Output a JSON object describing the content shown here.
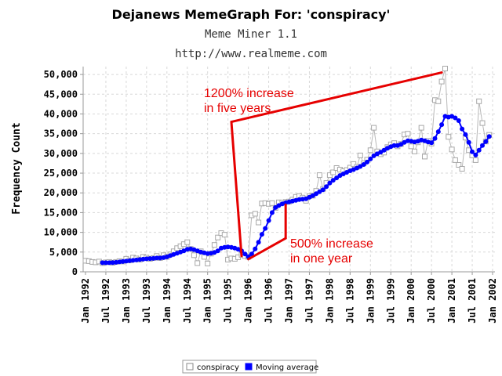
{
  "chart_data": {
    "type": "line",
    "title": "Dejanews MemeGraph For: 'conspiracy'",
    "subtitle": "Meme Miner 1.1",
    "source_line": "http://www.realmeme.com",
    "ylabel": "Frequency Count",
    "xlabel": "",
    "ylim": [
      0,
      52000
    ],
    "x_range": [
      "1992-01",
      "2002-01"
    ],
    "y_ticks": [
      {
        "value": 0,
        "label": "0"
      },
      {
        "value": 5000,
        "label": "5,000"
      },
      {
        "value": 10000,
        "label": "10,000"
      },
      {
        "value": 15000,
        "label": "15,000"
      },
      {
        "value": 20000,
        "label": "20,000"
      },
      {
        "value": 25000,
        "label": "25,000"
      },
      {
        "value": 30000,
        "label": "30,000"
      },
      {
        "value": 35000,
        "label": "35,000"
      },
      {
        "value": 40000,
        "label": "40,000"
      },
      {
        "value": 45000,
        "label": "45,000"
      },
      {
        "value": 50000,
        "label": "50,000"
      }
    ],
    "x_ticks": [
      {
        "x": "1992-01",
        "label": "Jan 1992"
      },
      {
        "x": "1992-07",
        "label": "Jul 1992"
      },
      {
        "x": "1993-01",
        "label": "Jan 1993"
      },
      {
        "x": "1993-07",
        "label": "Jul 1993"
      },
      {
        "x": "1994-01",
        "label": "Jan 1994"
      },
      {
        "x": "1994-07",
        "label": "Jul 1994"
      },
      {
        "x": "1995-01",
        "label": "Jan 1995"
      },
      {
        "x": "1995-07",
        "label": "Jul 1995"
      },
      {
        "x": "1996-01",
        "label": "Jan 1996"
      },
      {
        "x": "1996-07",
        "label": "Jul 1996"
      },
      {
        "x": "1997-01",
        "label": "Jan 1997"
      },
      {
        "x": "1997-07",
        "label": "Jul 1997"
      },
      {
        "x": "1998-01",
        "label": "Jan 1998"
      },
      {
        "x": "1998-07",
        "label": "Jul 1998"
      },
      {
        "x": "1999-01",
        "label": "Jan 1999"
      },
      {
        "x": "1999-07",
        "label": "Jul 1999"
      },
      {
        "x": "2000-01",
        "label": "Jan 2000"
      },
      {
        "x": "2000-07",
        "label": "Jul 2000"
      },
      {
        "x": "2001-01",
        "label": "Jan 2001"
      },
      {
        "x": "2001-07",
        "label": "Jul 2001"
      },
      {
        "x": "2002-01",
        "label": "Jan 2002"
      }
    ],
    "grid": true,
    "legend_position": "bottom",
    "series": [
      {
        "name": "conspiracy",
        "color": "#aaaaaa",
        "marker": "open-square",
        "points": [
          [
            "1992-01",
            2800
          ],
          [
            "1992-02",
            2700
          ],
          [
            "1992-03",
            2500
          ],
          [
            "1992-04",
            2400
          ],
          [
            "1992-05",
            2600
          ],
          [
            "1992-06",
            2200
          ],
          [
            "1992-07",
            2400
          ],
          [
            "1992-08",
            2500
          ],
          [
            "1992-09",
            2300
          ],
          [
            "1992-10",
            2500
          ],
          [
            "1992-11",
            2700
          ],
          [
            "1992-12",
            2600
          ],
          [
            "1993-01",
            3300
          ],
          [
            "1993-02",
            2900
          ],
          [
            "1993-03",
            3600
          ],
          [
            "1993-04",
            3400
          ],
          [
            "1993-05",
            3100
          ],
          [
            "1993-06",
            3800
          ],
          [
            "1993-07",
            3600
          ],
          [
            "1993-08",
            3300
          ],
          [
            "1993-09",
            3500
          ],
          [
            "1993-10",
            4000
          ],
          [
            "1993-11",
            3500
          ],
          [
            "1993-12",
            4200
          ],
          [
            "1994-01",
            3800
          ],
          [
            "1994-02",
            4400
          ],
          [
            "1994-03",
            5200
          ],
          [
            "1994-04",
            6000
          ],
          [
            "1994-05",
            6500
          ],
          [
            "1994-06",
            7000
          ],
          [
            "1994-07",
            7500
          ],
          [
            "1994-08",
            5800
          ],
          [
            "1994-09",
            4200
          ],
          [
            "1994-10",
            2200
          ],
          [
            "1994-11",
            5200
          ],
          [
            "1994-12",
            3800
          ],
          [
            "1995-01",
            2100
          ],
          [
            "1995-02",
            4600
          ],
          [
            "1995-03",
            6800
          ],
          [
            "1995-04",
            8700
          ],
          [
            "1995-05",
            9800
          ],
          [
            "1995-06",
            9400
          ],
          [
            "1995-07",
            3100
          ],
          [
            "1995-08",
            3400
          ],
          [
            "1995-09",
            3300
          ],
          [
            "1995-10",
            3700
          ],
          [
            "1995-11",
            4300
          ],
          [
            "1995-12",
            4000
          ],
          [
            "1996-01",
            3800
          ],
          [
            "1996-02",
            14300
          ],
          [
            "1996-03",
            14700
          ],
          [
            "1996-04",
            12500
          ],
          [
            "1996-05",
            17300
          ],
          [
            "1996-06",
            17400
          ],
          [
            "1996-07",
            17200
          ],
          [
            "1996-08",
            17400
          ],
          [
            "1996-09",
            16200
          ],
          [
            "1996-10",
            17600
          ],
          [
            "1996-11",
            17500
          ],
          [
            "1996-12",
            17700
          ],
          [
            "1997-01",
            17800
          ],
          [
            "1997-02",
            18300
          ],
          [
            "1997-03",
            19000
          ],
          [
            "1997-04",
            19200
          ],
          [
            "1997-05",
            18800
          ],
          [
            "1997-06",
            18000
          ],
          [
            "1997-07",
            19200
          ],
          [
            "1997-08",
            19300
          ],
          [
            "1997-09",
            20500
          ],
          [
            "1997-10",
            24500
          ],
          [
            "1997-11",
            21000
          ],
          [
            "1997-12",
            22500
          ],
          [
            "1998-01",
            24500
          ],
          [
            "1998-02",
            25200
          ],
          [
            "1998-03",
            26300
          ],
          [
            "1998-04",
            25900
          ],
          [
            "1998-05",
            25500
          ],
          [
            "1998-06",
            25800
          ],
          [
            "1998-07",
            26400
          ],
          [
            "1998-08",
            27300
          ],
          [
            "1998-09",
            26600
          ],
          [
            "1998-10",
            29500
          ],
          [
            "1998-11",
            27500
          ],
          [
            "1998-12",
            28400
          ],
          [
            "1999-01",
            30800
          ],
          [
            "1999-02",
            36500
          ],
          [
            "1999-03",
            30500
          ],
          [
            "1999-04",
            29800
          ],
          [
            "1999-05",
            30200
          ],
          [
            "1999-06",
            31600
          ],
          [
            "1999-07",
            32300
          ],
          [
            "1999-08",
            32600
          ],
          [
            "1999-09",
            31800
          ],
          [
            "1999-10",
            32400
          ],
          [
            "1999-11",
            34800
          ],
          [
            "1999-12",
            35000
          ],
          [
            "2000-01",
            31800
          ],
          [
            "2000-02",
            30500
          ],
          [
            "2000-03",
            32800
          ],
          [
            "2000-04",
            36500
          ],
          [
            "2000-05",
            29200
          ],
          [
            "2000-06",
            33200
          ],
          [
            "2000-07",
            32500
          ],
          [
            "2000-08",
            43500
          ],
          [
            "2000-09",
            43200
          ],
          [
            "2000-10",
            48200
          ],
          [
            "2000-11",
            51500
          ],
          [
            "2000-12",
            34200
          ],
          [
            "2001-01",
            31000
          ],
          [
            "2001-02",
            28300
          ],
          [
            "2001-03",
            27100
          ],
          [
            "2001-04",
            26100
          ],
          [
            "2001-05",
            34000
          ],
          [
            "2001-06",
            30800
          ],
          [
            "2001-07",
            29500
          ],
          [
            "2001-08",
            28300
          ],
          [
            "2001-09",
            43200
          ],
          [
            "2001-10",
            37700
          ],
          [
            "2001-11",
            33000
          ],
          [
            "2001-12",
            34700
          ]
        ]
      },
      {
        "name": "Moving average",
        "color": "#0000ff",
        "marker": "filled-circle",
        "points": [
          [
            "1992-06",
            2300
          ],
          [
            "1992-07",
            2300
          ],
          [
            "1992-08",
            2300
          ],
          [
            "1992-09",
            2350
          ],
          [
            "1992-10",
            2400
          ],
          [
            "1992-11",
            2500
          ],
          [
            "1992-12",
            2600
          ],
          [
            "1993-01",
            2700
          ],
          [
            "1993-02",
            2800
          ],
          [
            "1993-03",
            2900
          ],
          [
            "1993-04",
            3000
          ],
          [
            "1993-05",
            3100
          ],
          [
            "1993-06",
            3200
          ],
          [
            "1993-07",
            3300
          ],
          [
            "1993-08",
            3350
          ],
          [
            "1993-09",
            3400
          ],
          [
            "1993-10",
            3500
          ],
          [
            "1993-11",
            3500
          ],
          [
            "1993-12",
            3600
          ],
          [
            "1994-01",
            3800
          ],
          [
            "1994-02",
            4100
          ],
          [
            "1994-03",
            4400
          ],
          [
            "1994-04",
            4700
          ],
          [
            "1994-05",
            5000
          ],
          [
            "1994-06",
            5300
          ],
          [
            "1994-07",
            5700
          ],
          [
            "1994-08",
            5800
          ],
          [
            "1994-09",
            5600
          ],
          [
            "1994-10",
            5300
          ],
          [
            "1994-11",
            5000
          ],
          [
            "1994-12",
            4800
          ],
          [
            "1995-01",
            4600
          ],
          [
            "1995-02",
            4700
          ],
          [
            "1995-03",
            4900
          ],
          [
            "1995-04",
            5300
          ],
          [
            "1995-05",
            6000
          ],
          [
            "1995-06",
            6200
          ],
          [
            "1995-07",
            6300
          ],
          [
            "1995-08",
            6200
          ],
          [
            "1995-09",
            6000
          ],
          [
            "1995-10",
            5700
          ],
          [
            "1995-11",
            5300
          ],
          [
            "1995-12",
            4500
          ],
          [
            "1996-01",
            3800
          ],
          [
            "1996-02",
            4500
          ],
          [
            "1996-03",
            5800
          ],
          [
            "1996-04",
            7500
          ],
          [
            "1996-05",
            9500
          ],
          [
            "1996-06",
            11000
          ],
          [
            "1996-07",
            13000
          ],
          [
            "1996-08",
            15000
          ],
          [
            "1996-09",
            16300
          ],
          [
            "1996-10",
            16800
          ],
          [
            "1996-11",
            17200
          ],
          [
            "1996-12",
            17500
          ],
          [
            "1997-01",
            17700
          ],
          [
            "1997-02",
            17900
          ],
          [
            "1997-03",
            18100
          ],
          [
            "1997-04",
            18300
          ],
          [
            "1997-05",
            18400
          ],
          [
            "1997-06",
            18500
          ],
          [
            "1997-07",
            18900
          ],
          [
            "1997-08",
            19300
          ],
          [
            "1997-09",
            19800
          ],
          [
            "1997-10",
            20300
          ],
          [
            "1997-11",
            20800
          ],
          [
            "1997-12",
            21600
          ],
          [
            "1998-01",
            22500
          ],
          [
            "1998-02",
            23200
          ],
          [
            "1998-03",
            23800
          ],
          [
            "1998-04",
            24400
          ],
          [
            "1998-05",
            24800
          ],
          [
            "1998-06",
            25200
          ],
          [
            "1998-07",
            25600
          ],
          [
            "1998-08",
            25900
          ],
          [
            "1998-09",
            26300
          ],
          [
            "1998-10",
            26700
          ],
          [
            "1998-11",
            27200
          ],
          [
            "1998-12",
            27800
          ],
          [
            "1999-01",
            28600
          ],
          [
            "1999-02",
            29400
          ],
          [
            "1999-03",
            29900
          ],
          [
            "1999-04",
            30300
          ],
          [
            "1999-05",
            30800
          ],
          [
            "1999-06",
            31300
          ],
          [
            "1999-07",
            31700
          ],
          [
            "1999-08",
            32000
          ],
          [
            "1999-09",
            32000
          ],
          [
            "1999-10",
            32300
          ],
          [
            "1999-11",
            32800
          ],
          [
            "1999-12",
            33200
          ],
          [
            "2000-01",
            33100
          ],
          [
            "2000-02",
            32900
          ],
          [
            "2000-03",
            33100
          ],
          [
            "2000-04",
            33400
          ],
          [
            "2000-05",
            33200
          ],
          [
            "2000-06",
            32900
          ],
          [
            "2000-07",
            32700
          ],
          [
            "2000-08",
            33800
          ],
          [
            "2000-09",
            35500
          ],
          [
            "2000-10",
            37300
          ],
          [
            "2000-11",
            39400
          ],
          [
            "2000-12",
            39200
          ],
          [
            "2001-01",
            39400
          ],
          [
            "2001-02",
            39000
          ],
          [
            "2001-03",
            38300
          ],
          [
            "2001-04",
            36200
          ],
          [
            "2001-05",
            34800
          ],
          [
            "2001-06",
            32800
          ],
          [
            "2001-07",
            30400
          ],
          [
            "2001-08",
            29600
          ],
          [
            "2001-09",
            30800
          ],
          [
            "2001-10",
            32000
          ],
          [
            "2001-11",
            33000
          ],
          [
            "2001-12",
            34300
          ]
        ]
      }
    ],
    "annotations": [
      {
        "text_lines": [
          "1200% increase",
          "in five years"
        ],
        "color": "#e60000"
      },
      {
        "text_lines": [
          "500% increase",
          "in one year"
        ],
        "color": "#e60000"
      }
    ],
    "annotation_lines": [
      {
        "from": [
          "1995-08",
          38000
        ],
        "to": [
          "1995-11",
          4000
        ]
      },
      {
        "from": [
          "1995-08",
          38000
        ],
        "to": [
          "2000-10",
          50500
        ]
      },
      {
        "from": [
          "1996-01",
          3200
        ],
        "to": [
          "1996-12",
          8500
        ]
      },
      {
        "from": [
          "1996-12",
          8500
        ],
        "to": [
          "1996-12",
          17000
        ]
      }
    ]
  }
}
